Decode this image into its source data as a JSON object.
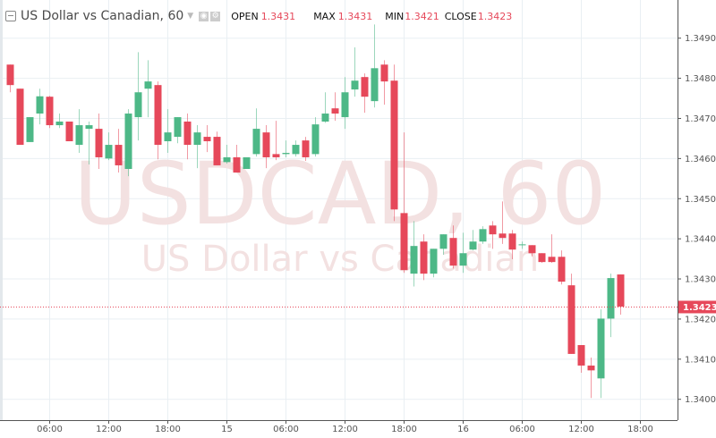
{
  "header": {
    "title": "US Dollar vs Canadian, 60",
    "open_label": "OPEN",
    "open_value": "1.3431",
    "max_label": "MAX",
    "max_value": "1.3431",
    "min_label": "MIN",
    "min_value": "1.3421",
    "close_label": "CLOSE",
    "close_value": "1.3423",
    "icons": [
      "collapse-icon",
      "dropdown-caret-icon",
      "visibility-icon",
      "settings-icon"
    ]
  },
  "watermark": {
    "symbol": "USDCAD, 60",
    "name": "US Dollar vs Canadian"
  },
  "colors": {
    "up": "#4db887",
    "down": "#e6485a",
    "grid": "#e9eff3",
    "watermark": "#f3e1e1",
    "value_text": "#e6485a"
  },
  "chart_data": {
    "type": "candlestick",
    "title": "US Dollar vs Canadian, 60",
    "interval": "60",
    "ylim": [
      1.33947,
      1.34994
    ],
    "yticks": [
      "1.3490",
      "1.3480",
      "1.3470",
      "1.3460",
      "1.3450",
      "1.3440",
      "1.3430",
      "1.3420",
      "1.3410",
      "1.3400"
    ],
    "xticks": [
      {
        "label": "06:00",
        "t": "14 06:00"
      },
      {
        "label": "12:00",
        "t": "14 12:00"
      },
      {
        "label": "18:00",
        "t": "14 18:00"
      },
      {
        "label": "15",
        "t": "15 00:00"
      },
      {
        "label": "06:00",
        "t": "15 06:00"
      },
      {
        "label": "12:00",
        "t": "15 12:00"
      },
      {
        "label": "18:00",
        "t": "15 18:00"
      },
      {
        "label": "16",
        "t": "16 00:00"
      },
      {
        "label": "06:00",
        "t": "16 06:00"
      },
      {
        "label": "12:00",
        "t": "16 12:00"
      },
      {
        "label": "18:00",
        "t": "16 18:00"
      }
    ],
    "grid": true,
    "last_price": "1.3423",
    "columns": [
      "t",
      "open",
      "high",
      "low",
      "close"
    ],
    "candles": [
      [
        "14 02:00",
        1.34833,
        1.34833,
        1.34764,
        1.34782
      ],
      [
        "14 03:00",
        1.34773,
        1.34773,
        1.34633,
        1.34633
      ],
      [
        "14 04:00",
        1.3464,
        1.34702,
        1.3464,
        1.34702
      ],
      [
        "14 05:00",
        1.34711,
        1.34773,
        1.34684,
        1.34754
      ],
      [
        "14 06:00",
        1.34753,
        1.34755,
        1.34675,
        1.34682
      ],
      [
        "14 07:00",
        1.34682,
        1.34711,
        1.34675,
        1.34691
      ],
      [
        "14 08:00",
        1.34691,
        1.34691,
        1.34642,
        1.34642
      ],
      [
        "14 09:00",
        1.34633,
        1.34722,
        1.34613,
        1.34682
      ],
      [
        "14 10:00",
        1.34673,
        1.34691,
        1.34584,
        1.34682
      ],
      [
        "14 11:00",
        1.34673,
        1.34711,
        1.34573,
        1.34602
      ],
      [
        "14 12:00",
        1.34599,
        1.34664,
        1.34595,
        1.34633
      ],
      [
        "14 13:00",
        1.34633,
        1.34673,
        1.34564,
        1.34582
      ],
      [
        "14 14:00",
        1.34573,
        1.34722,
        1.34555,
        1.34711
      ],
      [
        "14 15:00",
        1.34702,
        1.34864,
        1.34644,
        1.34764
      ],
      [
        "14 16:00",
        1.34773,
        1.34844,
        1.34702,
        1.34791
      ],
      [
        "14 17:00",
        1.34782,
        1.34791,
        1.34597,
        1.34633
      ],
      [
        "14 18:00",
        1.34642,
        1.34722,
        1.34613,
        1.34664
      ],
      [
        "14 19:00",
        1.34653,
        1.34702,
        1.34637,
        1.34702
      ],
      [
        "14 20:00",
        1.34691,
        1.34711,
        1.34597,
        1.34633
      ],
      [
        "14 21:00",
        1.34633,
        1.34682,
        1.34575,
        1.34664
      ],
      [
        "14 22:00",
        1.34653,
        1.34682,
        1.34615,
        1.34642
      ],
      [
        "14 23:00",
        1.34653,
        1.34666,
        1.34582,
        1.34582
      ],
      [
        "15 00:00",
        1.3459,
        1.34633,
        1.34586,
        1.34602
      ],
      [
        "15 01:00",
        1.34602,
        1.34633,
        1.34564,
        1.34564
      ],
      [
        "15 02:00",
        1.34573,
        1.34602,
        1.34573,
        1.34602
      ],
      [
        "15 03:00",
        1.3461,
        1.34724,
        1.34604,
        1.34673
      ],
      [
        "15 04:00",
        1.34664,
        1.34682,
        1.34575,
        1.34602
      ],
      [
        "15 05:00",
        1.3461,
        1.34693,
        1.34595,
        1.34602
      ],
      [
        "15 06:00",
        1.3461,
        1.34644,
        1.34602,
        1.34613
      ],
      [
        "15 07:00",
        1.3461,
        1.34644,
        1.34604,
        1.34633
      ],
      [
        "15 08:00",
        1.34644,
        1.34653,
        1.34593,
        1.34602
      ],
      [
        "15 09:00",
        1.3461,
        1.34702,
        1.34604,
        1.34684
      ],
      [
        "15 10:00",
        1.34691,
        1.34764,
        1.34688,
        1.34711
      ],
      [
        "15 11:00",
        1.34724,
        1.34764,
        1.34693,
        1.34711
      ],
      [
        "15 12:00",
        1.34702,
        1.34802,
        1.34673,
        1.34764
      ],
      [
        "15 13:00",
        1.34771,
        1.34876,
        1.34753,
        1.34793
      ],
      [
        "15 14:00",
        1.34802,
        1.34811,
        1.34713,
        1.34753
      ],
      [
        "15 15:00",
        1.34742,
        1.34933,
        1.34726,
        1.34824
      ],
      [
        "15 16:00",
        1.34833,
        1.34844,
        1.34733,
        1.34791
      ],
      [
        "15 17:00",
        1.34793,
        1.34833,
        1.34443,
        1.34472
      ],
      [
        "15 18:00",
        1.34463,
        1.34664,
        1.34314,
        1.34321
      ],
      [
        "15 19:00",
        1.34312,
        1.34443,
        1.3428,
        1.34381
      ],
      [
        "15 20:00",
        1.34392,
        1.3441,
        1.34296,
        1.34312
      ],
      [
        "15 21:00",
        1.34312,
        1.34374,
        1.34303,
        1.34374
      ],
      [
        "15 22:00",
        1.34374,
        1.3441,
        1.34359,
        1.3441
      ],
      [
        "15 23:00",
        1.34401,
        1.34432,
        1.34325,
        1.34332
      ],
      [
        "16 00:00",
        1.34332,
        1.34414,
        1.34314,
        1.34363
      ],
      [
        "16 01:00",
        1.34372,
        1.34421,
        1.3437,
        1.34392
      ],
      [
        "16 02:00",
        1.34392,
        1.3443,
        1.34386,
        1.34423
      ],
      [
        "16 03:00",
        1.34432,
        1.34443,
        1.34374,
        1.3441
      ],
      [
        "16 04:00",
        1.34412,
        1.34492,
        1.34386,
        1.34401
      ],
      [
        "16 05:00",
        1.34412,
        1.34421,
        1.34348,
        1.34372
      ],
      [
        "16 06:00",
        1.34383,
        1.34392,
        1.34374,
        1.34385
      ],
      [
        "16 07:00",
        1.34383,
        1.34383,
        1.34355,
        1.34363
      ],
      [
        "16 08:00",
        1.34363,
        1.34363,
        1.34339,
        1.34341
      ],
      [
        "16 09:00",
        1.34354,
        1.3441,
        1.34339,
        1.34341
      ],
      [
        "16 10:00",
        1.34354,
        1.3437,
        1.34285,
        1.34292
      ],
      [
        "16 11:00",
        1.34283,
        1.34312,
        1.34112,
        1.34112
      ],
      [
        "16 12:00",
        1.34134,
        1.34134,
        1.34065,
        1.34083
      ],
      [
        "16 13:00",
        1.34083,
        1.34103,
        1.34002,
        1.34071
      ],
      [
        "16 14:00",
        1.34051,
        1.34223,
        1.34002,
        1.342
      ],
      [
        "16 15:00",
        1.342,
        1.34312,
        1.34154,
        1.34301
      ],
      [
        "16 16:00",
        1.3431,
        1.3431,
        1.3421,
        1.3423
      ]
    ]
  }
}
